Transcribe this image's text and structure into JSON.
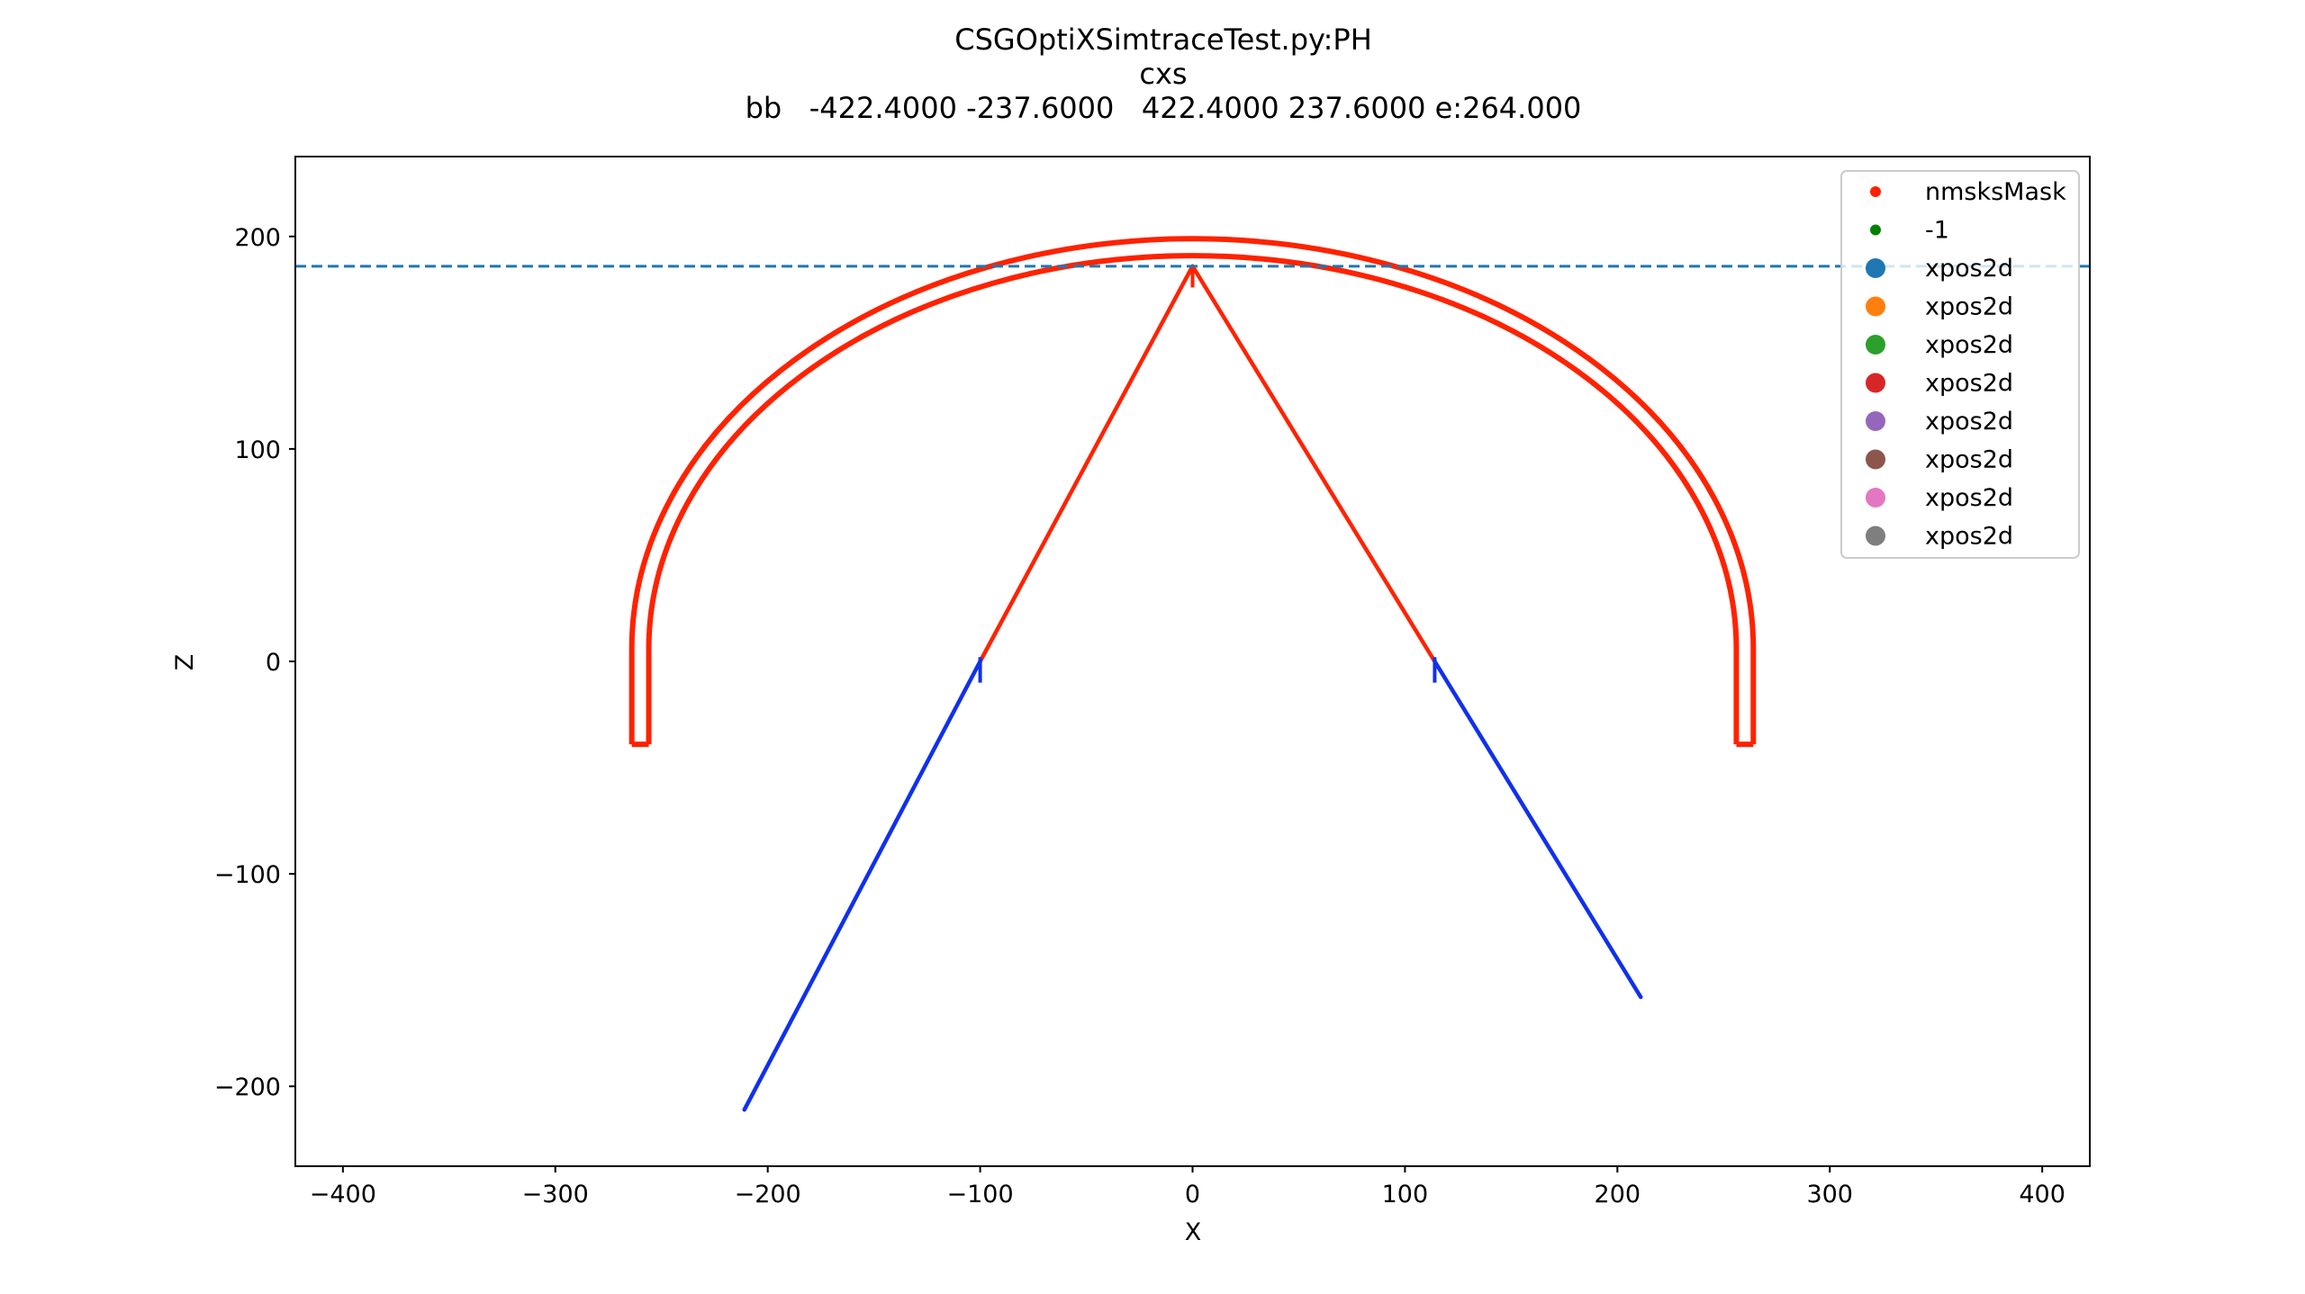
{
  "chart_data": {
    "type": "scatter",
    "title_lines": [
      "CSGOptiXSimtraceTest.py:PH",
      "cxs",
      "bb   -422.4000 -237.6000   422.4000 237.6000 e:264.000"
    ],
    "xlabel": "X",
    "ylabel": "Z",
    "xlim": [
      -422.4,
      422.4
    ],
    "ylim": [
      -237.6,
      237.6
    ],
    "xticks": [
      -400,
      -300,
      -200,
      -100,
      0,
      100,
      200,
      300,
      400
    ],
    "yticks": [
      -200,
      -100,
      0,
      100,
      200
    ],
    "xtick_labels": [
      "−400",
      "−300",
      "−200",
      "−100",
      "0",
      "100",
      "200",
      "300",
      "400"
    ],
    "ytick_labels": [
      "−200",
      "−100",
      "0",
      "100",
      "200"
    ],
    "grid": false,
    "legend_position": "top-right",
    "hline": {
      "y": 186,
      "color": "#1f77b4",
      "style": "dashed"
    },
    "shell": {
      "color": "#ff2200",
      "outer_radius_x": 264,
      "outer_radius_z": 193,
      "inner_radius_x": 256,
      "inner_radius_z": 185,
      "equator_z": 6,
      "bottom_z": -39
    },
    "series": [
      {
        "name": "red rays",
        "color": "#ff2200",
        "segments": [
          {
            "x": [
              -100,
              0
            ],
            "y": [
              0,
              186
            ]
          },
          {
            "x": [
              0,
              114
            ],
            "y": [
              186,
              0
            ]
          }
        ]
      },
      {
        "name": "blue rays",
        "color": "#1030ee",
        "segments": [
          {
            "x": [
              -211,
              -100
            ],
            "y": [
              -211,
              0
            ]
          },
          {
            "x": [
              211,
              114
            ],
            "y": [
              -158,
              0
            ]
          }
        ]
      }
    ],
    "legend": [
      {
        "label": "nmsksMask",
        "color": "#ff2200",
        "marker": "small"
      },
      {
        "label": "-1",
        "color": "#008000",
        "marker": "small"
      },
      {
        "label": "xpos2d",
        "color": "#1f77b4",
        "marker": "large"
      },
      {
        "label": "xpos2d",
        "color": "#ff7f0e",
        "marker": "large"
      },
      {
        "label": "xpos2d",
        "color": "#2ca02c",
        "marker": "large"
      },
      {
        "label": "xpos2d",
        "color": "#d62728",
        "marker": "large"
      },
      {
        "label": "xpos2d",
        "color": "#9467bd",
        "marker": "large"
      },
      {
        "label": "xpos2d",
        "color": "#8c564b",
        "marker": "large"
      },
      {
        "label": "xpos2d",
        "color": "#e377c2",
        "marker": "large"
      },
      {
        "label": "xpos2d",
        "color": "#7f7f7f",
        "marker": "large"
      }
    ]
  }
}
